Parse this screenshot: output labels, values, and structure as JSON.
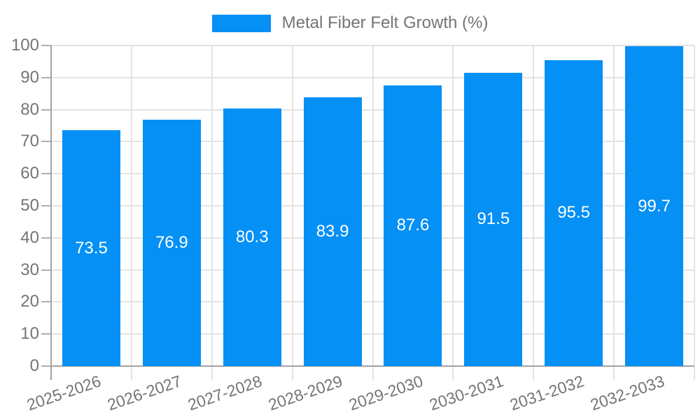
{
  "legend": {
    "label": "Metal Fiber Felt Growth (%)"
  },
  "chart_data": {
    "type": "bar",
    "title": "",
    "categories": [
      "2025-2026",
      "2026-2027",
      "2027-2028",
      "2028-2029",
      "2029-2030",
      "2030-2031",
      "2031-2032",
      "2032-2033"
    ],
    "values": [
      73.5,
      76.9,
      80.3,
      83.9,
      87.6,
      91.5,
      95.5,
      99.7
    ],
    "value_labels": [
      "73.5",
      "76.9",
      "80.3",
      "83.9",
      "87.6",
      "91.5",
      "95.5",
      "99.7"
    ],
    "series_name": "Metal Fiber Felt Growth (%)",
    "xlabel": "",
    "ylabel": "",
    "ylim": [
      0,
      100
    ],
    "yticks": [
      0,
      10,
      20,
      30,
      40,
      50,
      60,
      70,
      80,
      90,
      100
    ],
    "grid": true,
    "legend_position": "top-center",
    "x_label_rotation_deg": -19,
    "colors": {
      "bar": "#0590F5",
      "value_label": "#ffffff",
      "axis_text": "#757575",
      "grid_line": "#e3e3e3",
      "axis_line": "#a3a3a3",
      "y_tick": "#b0b0b0"
    }
  }
}
